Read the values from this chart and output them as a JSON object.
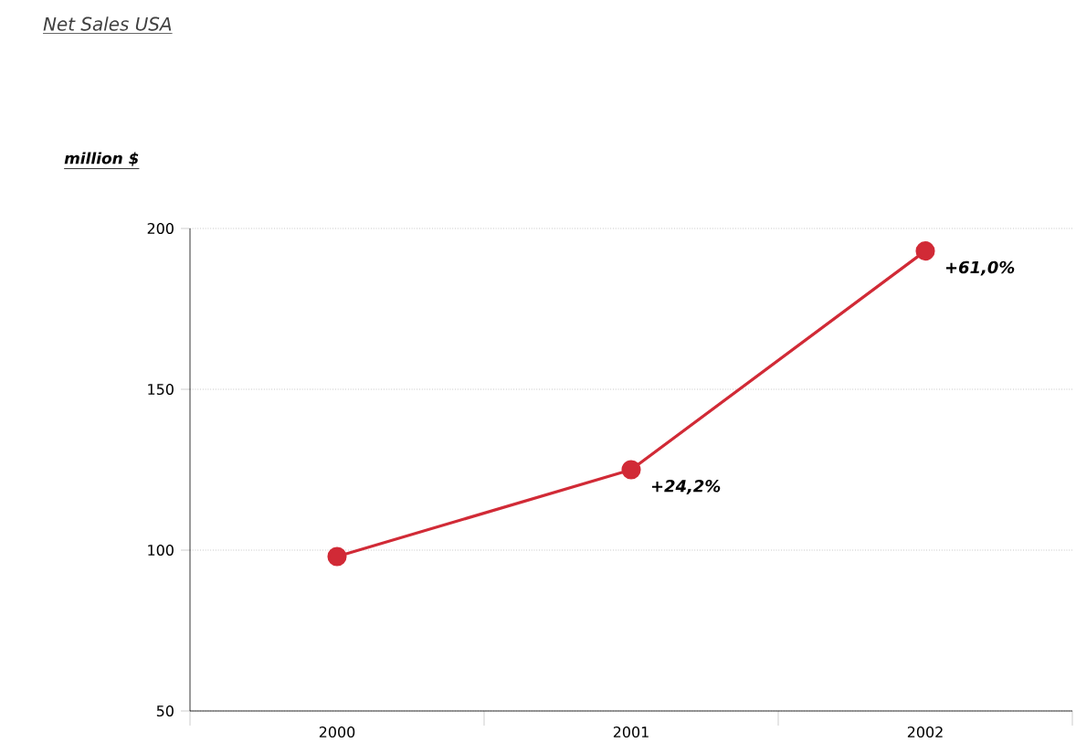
{
  "chart_data": {
    "type": "line",
    "title": "Net Sales USA",
    "ylabel": "million $",
    "categories": [
      "2000",
      "2001",
      "2002"
    ],
    "series": [
      {
        "color": "#d12a36",
        "values": [
          98,
          125,
          193
        ]
      }
    ],
    "ylim": [
      50,
      200
    ],
    "yticks": [
      50,
      100,
      150,
      200
    ],
    "grid": "y",
    "marker": "circle",
    "line_style": "solid",
    "annotations": [
      {
        "text": "+24,2%",
        "x": "2001",
        "y": 125
      },
      {
        "text": "+61,0%",
        "x": "2002",
        "y": 193
      }
    ]
  }
}
